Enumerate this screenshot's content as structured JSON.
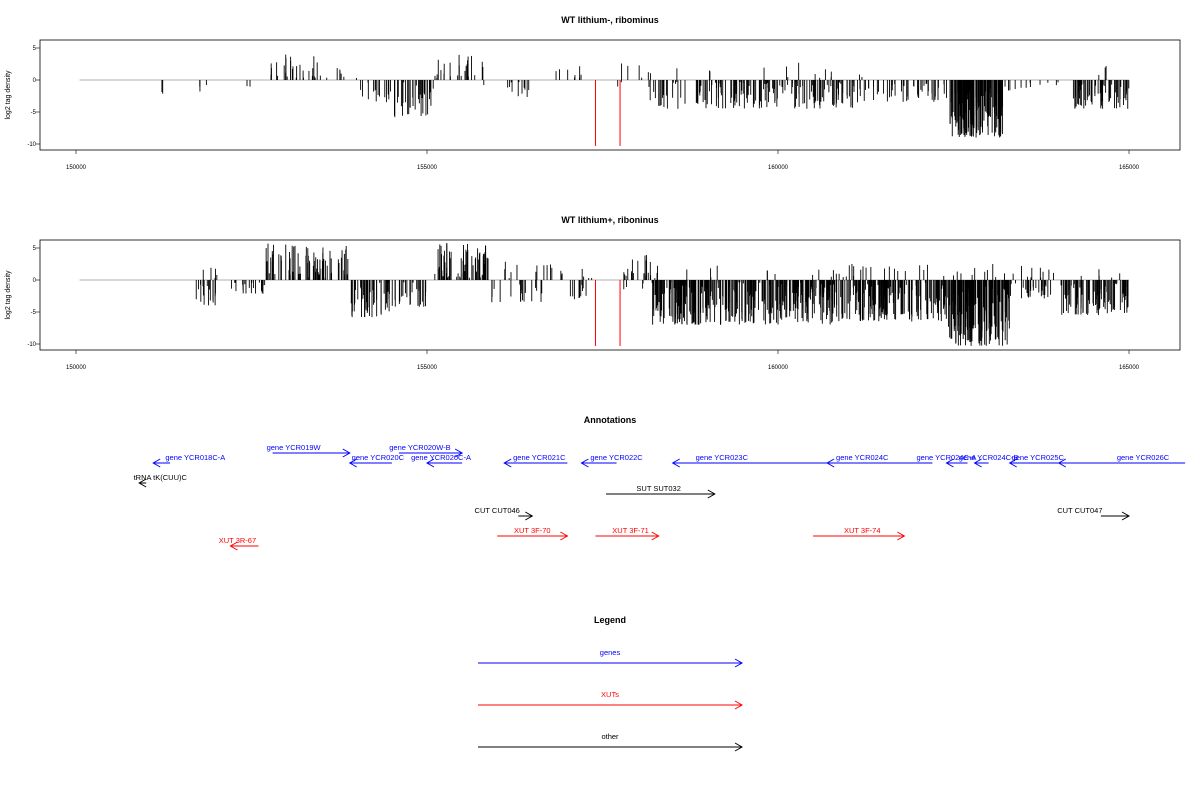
{
  "panels": [
    {
      "title": "WT lithium-, ribominus",
      "ylabel": "log2 tag density",
      "xlim": [
        150000,
        165000
      ],
      "ylim": [
        -10,
        5
      ],
      "xticks": [
        "150000",
        "155000",
        "160000",
        "165000"
      ],
      "yticks": [
        "5",
        "0",
        "-5",
        "-10"
      ]
    },
    {
      "title": "WT lithium+, riboninus",
      "ylabel": "log2 tag density",
      "xlim": [
        150000,
        165000
      ],
      "ylim": [
        -10,
        5
      ],
      "xticks": [
        "150000",
        "155000",
        "160000",
        "165000"
      ],
      "yticks": [
        "5",
        "0",
        "-5",
        "-10"
      ]
    }
  ],
  "annotations_title": "Annotations",
  "legend_title": "Legend",
  "colors": {
    "gene": "#0000ff",
    "xut": "#ff0000",
    "other": "#000000",
    "signal": "#000000",
    "highlight": "#ff0000",
    "baseline": "#999999"
  },
  "chart_data": [
    {
      "type": "bar",
      "title": "WT lithium-, ribominus",
      "ylabel": "log2 tag density",
      "xlabel": "",
      "xlim": [
        150000,
        165000
      ],
      "ylim": [
        -10,
        5
      ],
      "baseline_range": [
        150050,
        165000
      ],
      "seed": 11,
      "red_spikes": [
        {
          "x": 157400,
          "y": -10.3
        },
        {
          "x": 157750,
          "y": -10.3
        }
      ],
      "clusters": [
        {
          "from": 151200,
          "to": 151300,
          "n": 2,
          "min": -2.2,
          "max": -0.5
        },
        {
          "from": 151750,
          "to": 151900,
          "n": 3,
          "min": -2,
          "max": -0.5
        },
        {
          "from": 152400,
          "to": 152500,
          "n": 2,
          "min": -1.2,
          "max": -0.3
        },
        {
          "from": 152750,
          "to": 153600,
          "n": 28,
          "min": 0.3,
          "max": 4
        },
        {
          "from": 153700,
          "to": 154000,
          "n": 6,
          "min": 0.3,
          "max": 2.8
        },
        {
          "from": 154000,
          "to": 154500,
          "n": 16,
          "min": -3.5,
          "max": -0.3
        },
        {
          "from": 154500,
          "to": 155100,
          "n": 32,
          "min": -5.8,
          "max": -0.3
        },
        {
          "from": 155100,
          "to": 155800,
          "n": 24,
          "min": 0.3,
          "max": 4.2
        },
        {
          "from": 155800,
          "to": 156200,
          "n": 4,
          "min": -1.5,
          "max": -0.3
        },
        {
          "from": 156200,
          "to": 156600,
          "n": 8,
          "min": -3.2,
          "max": -0.3
        },
        {
          "from": 156700,
          "to": 157200,
          "n": 8,
          "min": 0.3,
          "max": 3.3
        },
        {
          "from": 157300,
          "to": 158300,
          "n": 6,
          "min": -3.3,
          "max": -0.3
        },
        {
          "from": 157700,
          "to": 158300,
          "n": 6,
          "min": 0.3,
          "max": 2.8
        },
        {
          "from": 158300,
          "to": 161200,
          "n": 160,
          "min": -4.5,
          "max": -0.3
        },
        {
          "from": 158500,
          "to": 161200,
          "n": 14,
          "min": 0.3,
          "max": 2.8
        },
        {
          "from": 161200,
          "to": 162400,
          "n": 45,
          "min": -3.5,
          "max": -0.3
        },
        {
          "from": 162450,
          "to": 163200,
          "n": 160,
          "min": -9,
          "max": -1
        },
        {
          "from": 163200,
          "to": 163600,
          "n": 8,
          "min": -2,
          "max": -0.3
        },
        {
          "from": 163700,
          "to": 164100,
          "n": 4,
          "min": -1,
          "max": -0.3
        },
        {
          "from": 164200,
          "to": 165000,
          "n": 65,
          "min": -4.5,
          "max": -0.3
        },
        {
          "from": 164500,
          "to": 164900,
          "n": 3,
          "min": 0.3,
          "max": 2.2
        }
      ]
    },
    {
      "type": "bar",
      "title": "WT lithium+, riboninus",
      "ylabel": "log2 tag density",
      "xlabel": "",
      "xlim": [
        150000,
        165000
      ],
      "ylim": [
        -10,
        5
      ],
      "baseline_range": [
        150050,
        165000
      ],
      "seed": 29,
      "red_spikes": [
        {
          "x": 157400,
          "y": -10.3
        },
        {
          "x": 157750,
          "y": -10.3
        }
      ],
      "clusters": [
        {
          "from": 151700,
          "to": 152000,
          "n": 16,
          "min": -4,
          "max": -0.3
        },
        {
          "from": 151800,
          "to": 152200,
          "n": 5,
          "min": 0.3,
          "max": 2
        },
        {
          "from": 152200,
          "to": 152700,
          "n": 20,
          "min": -2.2,
          "max": -0.3
        },
        {
          "from": 152700,
          "to": 153900,
          "n": 80,
          "min": 0.3,
          "max": 5.8
        },
        {
          "from": 153900,
          "to": 154500,
          "n": 45,
          "min": -5.8,
          "max": -0.3
        },
        {
          "from": 154500,
          "to": 155000,
          "n": 26,
          "min": -4.2,
          "max": -0.3
        },
        {
          "from": 155100,
          "to": 155900,
          "n": 70,
          "min": 0.3,
          "max": 5.8
        },
        {
          "from": 155900,
          "to": 156700,
          "n": 18,
          "min": -3.5,
          "max": -0.3
        },
        {
          "from": 156000,
          "to": 157000,
          "n": 14,
          "min": 0.3,
          "max": 3
        },
        {
          "from": 157000,
          "to": 157400,
          "n": 10,
          "min": -3,
          "max": -0.3
        },
        {
          "from": 157200,
          "to": 157400,
          "n": 4,
          "min": 0.3,
          "max": 3
        },
        {
          "from": 157800,
          "to": 158300,
          "n": 22,
          "min": 0.3,
          "max": 4.2
        },
        {
          "from": 157800,
          "to": 158100,
          "n": 4,
          "min": -1.5,
          "max": -0.3
        },
        {
          "from": 158200,
          "to": 160800,
          "n": 300,
          "min": -7,
          "max": -0.3
        },
        {
          "from": 158500,
          "to": 160800,
          "n": 10,
          "min": 0.3,
          "max": 2.5
        },
        {
          "from": 160700,
          "to": 162400,
          "n": 170,
          "min": -6.5,
          "max": -0.3
        },
        {
          "from": 160700,
          "to": 162400,
          "n": 22,
          "min": 0.3,
          "max": 2.5
        },
        {
          "from": 162400,
          "to": 163300,
          "n": 170,
          "min": -10.3,
          "max": -0.5
        },
        {
          "from": 162400,
          "to": 163300,
          "n": 10,
          "min": 0.3,
          "max": 2.5
        },
        {
          "from": 163300,
          "to": 163900,
          "n": 26,
          "min": -3,
          "max": -0.3
        },
        {
          "from": 163300,
          "to": 164000,
          "n": 10,
          "min": 0.3,
          "max": 2.5
        },
        {
          "from": 164000,
          "to": 165000,
          "n": 90,
          "min": -5.5,
          "max": -0.3
        },
        {
          "from": 164200,
          "to": 164900,
          "n": 5,
          "min": 0.3,
          "max": 2
        }
      ]
    }
  ],
  "annotations": [
    {
      "label": "gene YCR018C-A",
      "kind": "gene",
      "from": 151340,
      "to": 151100,
      "row": 1,
      "label_x": 151700
    },
    {
      "label": "gene YCR019W",
      "kind": "gene",
      "from": 152800,
      "to": 153900,
      "row": 0,
      "label_x": 153100
    },
    {
      "label": "gene YCR020C",
      "kind": "gene",
      "from": 154500,
      "to": 153900,
      "row": 1,
      "label_x": 154300
    },
    {
      "label": "gene YCR020C-A",
      "kind": "gene",
      "from": 155500,
      "to": 155000,
      "row": 1,
      "label_x": 155200
    },
    {
      "label": "gene YCR020W-B",
      "kind": "gene",
      "from": 154600,
      "to": 155500,
      "row": 0,
      "label_x": 154900
    },
    {
      "label": "gene YCR021C",
      "kind": "gene",
      "from": 157000,
      "to": 156100,
      "row": 1,
      "label_x": 156600
    },
    {
      "label": "gene YCR022C",
      "kind": "gene",
      "from": 157700,
      "to": 157200,
      "row": 1,
      "label_x": 157700
    },
    {
      "label": "gene YCR023C",
      "kind": "gene",
      "from": 160800,
      "to": 158500,
      "row": 1,
      "label_x": 159200
    },
    {
      "label": "gene YCR024C",
      "kind": "gene",
      "from": 162200,
      "to": 160700,
      "row": 1,
      "label_x": 161200
    },
    {
      "label": "gene YCR024C-A",
      "kind": "gene",
      "from": 162700,
      "to": 162400,
      "row": 1,
      "label_x": 162400
    },
    {
      "label": "gene YCR024C-B",
      "kind": "gene",
      "from": 163000,
      "to": 162800,
      "row": 1,
      "label_x": 163000
    },
    {
      "label": "gene YCR025C",
      "kind": "gene",
      "from": 164000,
      "to": 163300,
      "row": 1,
      "label_x": 163700
    },
    {
      "label": "gene YCR026C",
      "kind": "gene",
      "from": 165800,
      "to": 164000,
      "row": 1,
      "label_x": 165200
    },
    {
      "label": "tRNA tK(CUU)C",
      "kind": "other",
      "from": 151000,
      "to": 150900,
      "row": 2,
      "label_x": 151200
    },
    {
      "label": "SUT SUT032",
      "kind": "other",
      "from": 157550,
      "to": 159100,
      "row": 3,
      "label_x": 158300
    },
    {
      "label": "CUT CUT046",
      "kind": "other",
      "from": 156300,
      "to": 156500,
      "row": 4,
      "label_x": 156000
    },
    {
      "label": "CUT CUT047",
      "kind": "other",
      "from": 164600,
      "to": 165000,
      "row": 4,
      "label_x": 164300
    },
    {
      "label": "XUT 3R-67",
      "kind": "xut",
      "from": 152600,
      "to": 152200,
      "row": 5,
      "label_x": 152300
    },
    {
      "label": "XUT 3F-70",
      "kind": "xut",
      "from": 156000,
      "to": 157000,
      "row": 6,
      "label_x": 156500
    },
    {
      "label": "XUT 3F-71",
      "kind": "xut",
      "from": 157400,
      "to": 158300,
      "row": 6,
      "label_x": 157900
    },
    {
      "label": "XUT 3F-74",
      "kind": "xut",
      "from": 160500,
      "to": 161800,
      "row": 6,
      "label_x": 161200
    }
  ],
  "legend": [
    {
      "label": "genes",
      "kind": "gene"
    },
    {
      "label": "XUTs",
      "kind": "xut"
    },
    {
      "label": "other",
      "kind": "other"
    }
  ]
}
